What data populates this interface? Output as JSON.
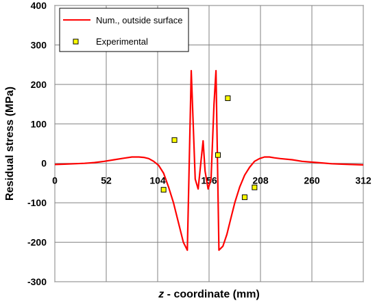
{
  "chart_data": {
    "type": "line",
    "xlabel_italic": "z",
    "xlabel_rest": " - coordinate (mm)",
    "ylabel": "Residual stress (MPa)",
    "xlim": [
      0,
      312
    ],
    "ylim": [
      -300,
      400
    ],
    "xticks": [
      0,
      52,
      104,
      156,
      208,
      260,
      312
    ],
    "xtick_labels": [
      "0",
      "52",
      "104",
      "156",
      "208",
      "260",
      "312"
    ],
    "yticks": [
      -300,
      -200,
      -100,
      0,
      100,
      200,
      300,
      400
    ],
    "ytick_labels": [
      "-300",
      "-200",
      "-100",
      "0",
      "100",
      "200",
      "300",
      "400"
    ],
    "grid": true,
    "legend_position": "top-left",
    "series": [
      {
        "name": "Num., outside surface",
        "kind": "line",
        "color": "#ff0000",
        "x": [
          0,
          10,
          20,
          30,
          40,
          50,
          60,
          70,
          78,
          85,
          90,
          95,
          100,
          105,
          110,
          115,
          120,
          125,
          130,
          134,
          138,
          142,
          145,
          148,
          150,
          152,
          155,
          158,
          161,
          163,
          166,
          170,
          174,
          178,
          182,
          187,
          192,
          197,
          202,
          207,
          212,
          217,
          222,
          228,
          240,
          250,
          260,
          270,
          280,
          290,
          300,
          312
        ],
        "y": [
          -3,
          -2,
          -1,
          0,
          2,
          5,
          9,
          13,
          16,
          16,
          15,
          12,
          5,
          -5,
          -25,
          -60,
          -100,
          -150,
          -200,
          -220,
          235,
          -40,
          -65,
          10,
          57,
          -20,
          -65,
          -40,
          150,
          235,
          -220,
          -210,
          -180,
          -140,
          -100,
          -60,
          -30,
          -10,
          5,
          12,
          16,
          16,
          14,
          12,
          9,
          5,
          3,
          1,
          -1,
          -2,
          -3,
          -4
        ]
      },
      {
        "name": "Experimental",
        "kind": "scatter",
        "color": "#ffff00",
        "x": [
          110,
          121,
          165,
          175,
          192,
          202
        ],
        "y": [
          -67,
          59,
          21,
          165,
          -86,
          -61
        ]
      }
    ]
  }
}
